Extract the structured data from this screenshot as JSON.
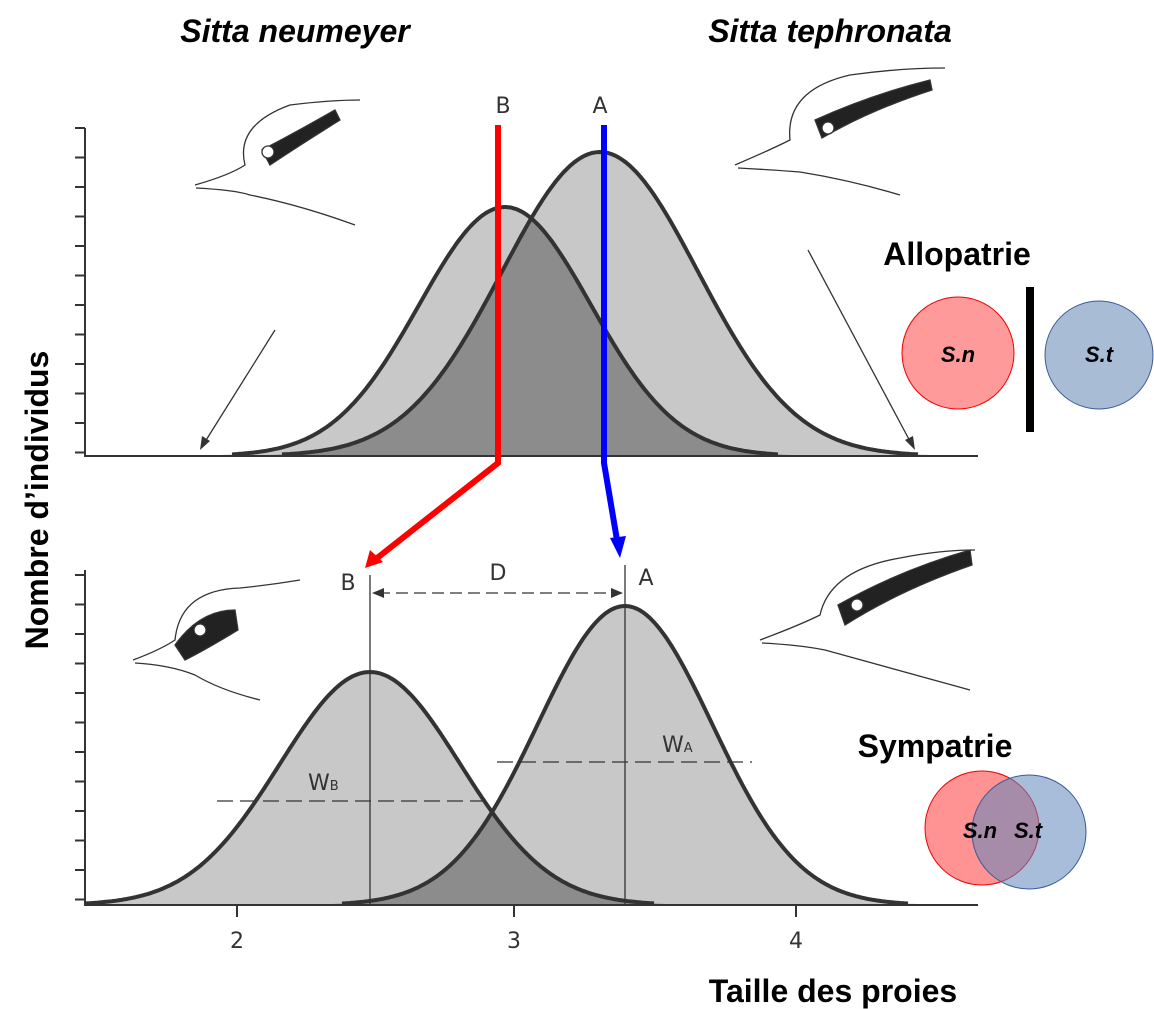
{
  "species": {
    "left": "Sitta neumeyer",
    "right": "Sitta tephronata"
  },
  "y_axis_label": "Nombre d’individus",
  "x_axis_label": "Taille des proies",
  "x_ticks": [
    "2",
    "3",
    "4"
  ],
  "top_panel": {
    "markers": [
      "B",
      "A"
    ]
  },
  "bottom_panel": {
    "markers": [
      "B",
      "A"
    ],
    "distance": "D",
    "width_b": {
      "main": "W",
      "sub": "B"
    },
    "width_a": {
      "main": "W",
      "sub": "A"
    }
  },
  "allopatrie": {
    "title": "Allopatrie",
    "circles": [
      "S.n",
      "S.t"
    ]
  },
  "sympatrie": {
    "title": "Sympatrie",
    "circles": [
      "S.n",
      "S.t"
    ]
  }
}
